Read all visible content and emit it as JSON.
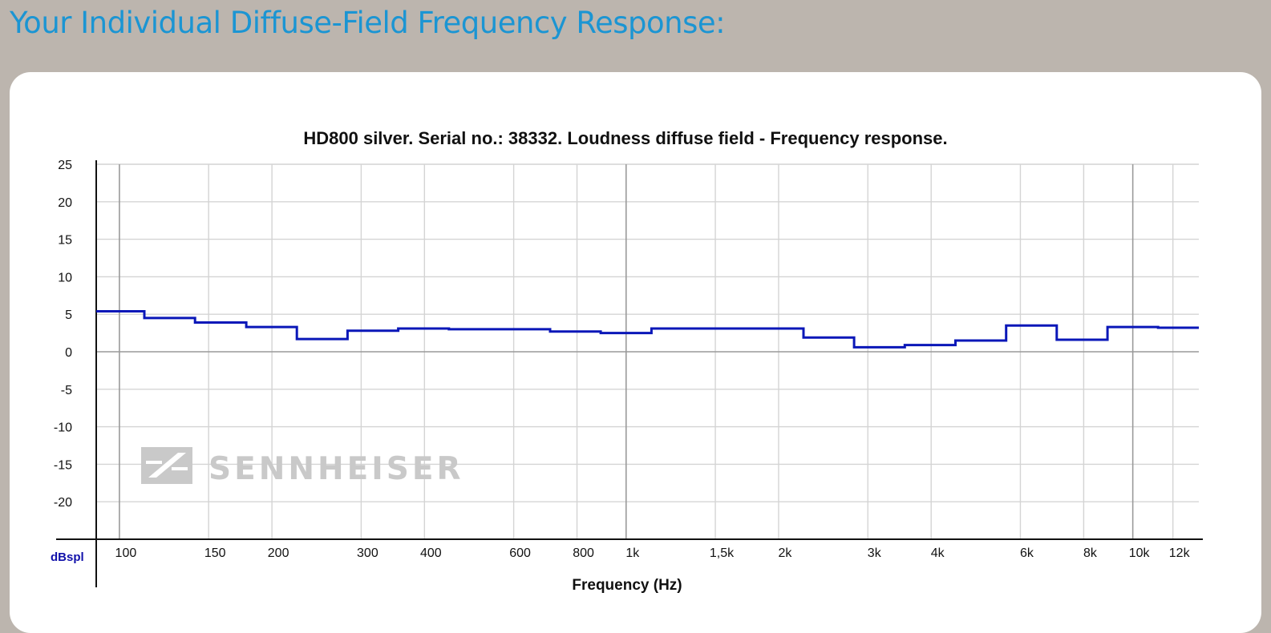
{
  "page": {
    "heading": "Your Individual Diffuse-Field Frequency Response:"
  },
  "colors": {
    "heading": "#1b95d3",
    "page_background": "#bcb5ae",
    "panel_background": "#ffffff",
    "series_line": "#0a17b8",
    "unit_label": "#1010aa",
    "grid": "#d4d4d4",
    "watermark": "#c9c9c9"
  },
  "watermark": {
    "text": "SENNHEISER",
    "icon": "sennheiser-logo-icon"
  },
  "chart_data": {
    "type": "line",
    "title": "HD800 silver. Serial no.: 38332.  Loudness diffuse field - Frequency response.",
    "xlabel": "Frequency (Hz)",
    "ylabel": "dBspl",
    "x_scale": "log",
    "xlim": [
      90,
      13500
    ],
    "ylim": [
      -25,
      25
    ],
    "grid": true,
    "legend": "none",
    "x_ticks": [
      {
        "value": 100,
        "label": "100"
      },
      {
        "value": 150,
        "label": "150"
      },
      {
        "value": 200,
        "label": "200"
      },
      {
        "value": 300,
        "label": "300"
      },
      {
        "value": 400,
        "label": "400"
      },
      {
        "value": 600,
        "label": "600"
      },
      {
        "value": 800,
        "label": "800"
      },
      {
        "value": 1000,
        "label": "1k"
      },
      {
        "value": 1500,
        "label": "1,5k"
      },
      {
        "value": 2000,
        "label": "2k"
      },
      {
        "value": 3000,
        "label": "3k"
      },
      {
        "value": 4000,
        "label": "4k"
      },
      {
        "value": 6000,
        "label": "6k"
      },
      {
        "value": 8000,
        "label": "8k"
      },
      {
        "value": 10000,
        "label": "10k"
      },
      {
        "value": 12000,
        "label": "12k"
      }
    ],
    "y_ticks": [
      {
        "value": 25,
        "label": "25"
      },
      {
        "value": 20,
        "label": "20"
      },
      {
        "value": 15,
        "label": "15"
      },
      {
        "value": 10,
        "label": "10"
      },
      {
        "value": 5,
        "label": "5"
      },
      {
        "value": 0,
        "label": "0"
      },
      {
        "value": -5,
        "label": "-5"
      },
      {
        "value": -10,
        "label": "-10"
      },
      {
        "value": -15,
        "label": "-15"
      },
      {
        "value": -20,
        "label": "-20"
      }
    ],
    "series": [
      {
        "step": true,
        "x": [
          90,
          112,
          141,
          178,
          224,
          282,
          355,
          447,
          562,
          708,
          891,
          1122,
          1413,
          1778,
          2239,
          2818,
          3548,
          4467,
          5623,
          7079,
          8913,
          11220,
          13500
        ],
        "y": [
          5.4,
          4.5,
          3.9,
          3.3,
          1.7,
          2.8,
          3.1,
          3.0,
          3.0,
          2.7,
          2.5,
          3.1,
          3.1,
          3.1,
          1.9,
          0.6,
          0.9,
          1.5,
          3.5,
          1.6,
          3.3,
          3.2,
          3.2
        ]
      }
    ]
  }
}
